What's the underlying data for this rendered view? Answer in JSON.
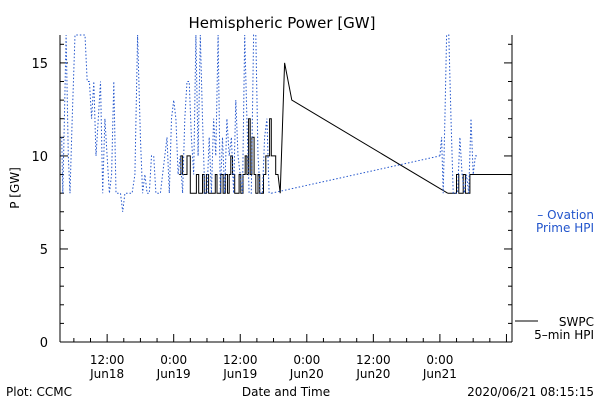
{
  "chart_data": {
    "type": "line",
    "title": "Hemispheric Power [GW]",
    "xlabel": "Date and Time",
    "ylabel": "P [GW]",
    "x_unit": "hours",
    "xlim": [
      3.5,
      85
    ],
    "ylim": [
      0,
      16.5
    ],
    "y_ticks": [
      0,
      5,
      10,
      15
    ],
    "x_ticks": [
      {
        "x": 12,
        "time": "12:00",
        "day": "Jun18"
      },
      {
        "x": 24,
        "time": "0:00",
        "day": "Jun19"
      },
      {
        "x": 36,
        "time": "12:00",
        "day": "Jun19"
      },
      {
        "x": 48,
        "time": "0:00",
        "day": "Jun20"
      },
      {
        "x": 60,
        "time": "12:00",
        "day": "Jun20"
      },
      {
        "x": 72,
        "time": "0:00",
        "day": "Jun21"
      }
    ],
    "grid": false,
    "series": [
      {
        "name": "SWPC 5-min HPI",
        "label_lines": [
          "SWPC",
          "5–min HPI"
        ],
        "color": "#000000",
        "style": "solid",
        "x": [
          25.0,
          25.3,
          25.6,
          26.0,
          26.4,
          27.0,
          27.3,
          27.8,
          28.1,
          28.5,
          28.8,
          29.2,
          29.5,
          29.9,
          30.3,
          30.8,
          31.1,
          31.5,
          31.8,
          32.2,
          32.5,
          32.9,
          33.3,
          33.7,
          34.0,
          34.3,
          34.6,
          35.0,
          35.4,
          35.8,
          36.1,
          36.5,
          36.9,
          37.2,
          37.5,
          37.8,
          38.1,
          38.5,
          38.8,
          39.2,
          39.5,
          39.9,
          40.2,
          40.6,
          40.9,
          41.3,
          41.6,
          42.0,
          42.4,
          42.8,
          43.2,
          44.0,
          45.3,
          73.4,
          73.8,
          74.2,
          74.6,
          75.0,
          75.4,
          75.8,
          76.2,
          76.6,
          77.0,
          77.4,
          77.8,
          78.2,
          78.7
        ],
        "y": [
          9,
          10,
          9,
          9,
          10,
          8,
          8,
          8,
          9,
          8,
          8,
          9,
          8,
          9,
          8,
          8,
          8,
          9,
          8,
          8,
          9,
          8,
          9,
          8,
          9,
          10,
          9,
          8,
          8,
          9,
          8,
          9,
          10,
          9,
          12,
          9,
          11,
          9,
          8,
          9,
          8,
          8,
          9,
          10,
          10,
          12,
          10,
          10,
          9,
          9,
          8,
          15,
          13,
          8,
          8,
          8,
          8,
          9,
          8,
          8,
          9,
          8,
          8,
          9,
          9,
          9,
          9
        ]
      },
      {
        "name": "Ovation Prime HPI",
        "label_lines": [
          "– Ovation",
          "Prime HPI"
        ],
        "color": "#2255cc",
        "style": "dotted",
        "x": [
          3.8,
          4.0,
          4.3,
          4.6,
          5.0,
          5.3,
          5.7,
          6.2,
          6.8,
          7.5,
          8.0,
          8.4,
          8.8,
          9.2,
          9.6,
          10.0,
          10.4,
          10.8,
          11.2,
          11.6,
          12.0,
          12.4,
          12.8,
          13.2,
          13.6,
          14.0,
          14.4,
          14.8,
          15.2,
          15.6,
          16.0,
          16.5,
          17.0,
          17.5,
          18.0,
          18.4,
          18.8,
          19.2,
          19.6,
          20.0,
          20.4,
          20.8,
          21.2,
          21.6,
          22.0,
          22.4,
          22.8,
          23.2,
          23.6,
          24.0,
          24.4,
          24.8,
          25.2,
          25.6,
          26.0,
          26.4,
          26.8,
          27.2,
          27.6,
          28.0,
          28.4,
          28.8,
          29.2,
          29.6,
          30.0,
          30.4,
          30.8,
          31.2,
          31.6,
          32.0,
          32.4,
          32.8,
          33.2,
          33.6,
          34.0,
          34.4,
          34.8,
          35.2,
          35.6,
          36.0,
          36.4,
          36.8,
          37.2,
          37.6,
          38.0,
          38.4,
          38.8,
          39.2,
          39.6,
          40.0,
          40.4,
          40.8,
          41.2,
          41.6,
          72.0,
          72.3,
          72.6,
          72.9,
          73.2,
          73.6,
          74.0,
          74.4,
          74.8,
          75.2,
          75.6,
          76.0,
          76.4,
          76.8,
          77.2,
          77.6,
          78.0,
          78.4,
          78.7
        ],
        "y": [
          11,
          8,
          12,
          16.5,
          10,
          8,
          12,
          16.5,
          16.5,
          16.5,
          16.5,
          14,
          14,
          12,
          14,
          10,
          12,
          14,
          8,
          12,
          10,
          8,
          9,
          14,
          8,
          8,
          8,
          7,
          8,
          8,
          8,
          8,
          9,
          16.5,
          11,
          8,
          9,
          8,
          8,
          10,
          10,
          8,
          8,
          8,
          9,
          10,
          11,
          8,
          12,
          13,
          12,
          9,
          10,
          8,
          12,
          14,
          14,
          11,
          9,
          16.5,
          10,
          16.5,
          12,
          8,
          8,
          11,
          8,
          12,
          10,
          16.5,
          8,
          11,
          8,
          12,
          10,
          11,
          8,
          13,
          10,
          9,
          8,
          16.5,
          12,
          8,
          8,
          16.5,
          16.5,
          10,
          8,
          8,
          11,
          12,
          8,
          8,
          10,
          11,
          8,
          12,
          16.5,
          16.5,
          12,
          8,
          8,
          8,
          11,
          9,
          8,
          9,
          8,
          12,
          9,
          10,
          10
        ],
        "bridge": [
          [
            41.6,
            8
          ],
          [
            72.0,
            10
          ]
        ]
      }
    ],
    "footer": {
      "left": "Plot: CCMC",
      "center": "Date and Time",
      "right": "2020/06/21 08:15:15"
    }
  }
}
